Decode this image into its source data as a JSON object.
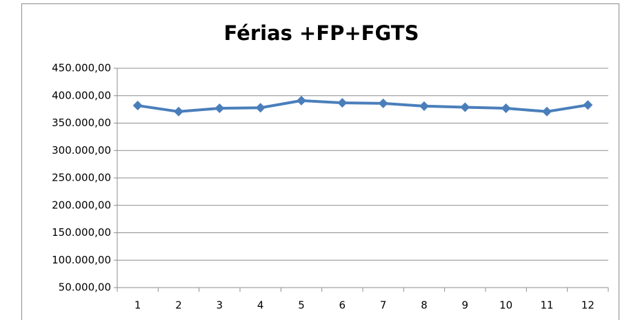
{
  "chart_data": {
    "type": "line",
    "title": "Férias +FP+FGTS",
    "categories": [
      "1",
      "2",
      "3",
      "4",
      "5",
      "6",
      "7",
      "8",
      "9",
      "10",
      "11",
      "12"
    ],
    "series": [
      {
        "name": "Férias +FP+FGTS",
        "color": "#4a7ebb",
        "values": [
          382000,
          371000,
          377000,
          378000,
          391000,
          387000,
          386000,
          381000,
          379000,
          377000,
          371000,
          383000
        ]
      }
    ],
    "ylim": [
      50000,
      450000
    ],
    "yticks": [
      {
        "value": 50000,
        "label": "50.000,00"
      },
      {
        "value": 100000,
        "label": "100.000,00"
      },
      {
        "value": 150000,
        "label": "150.000,00"
      },
      {
        "value": 200000,
        "label": "200.000,00"
      },
      {
        "value": 250000,
        "label": "250.000,00"
      },
      {
        "value": 300000,
        "label": "300.000,00"
      },
      {
        "value": 350000,
        "label": "350.000,00"
      },
      {
        "value": 400000,
        "label": "400.000,00"
      },
      {
        "value": 450000,
        "label": "450.000,00"
      }
    ],
    "grid": true,
    "legend": false
  }
}
